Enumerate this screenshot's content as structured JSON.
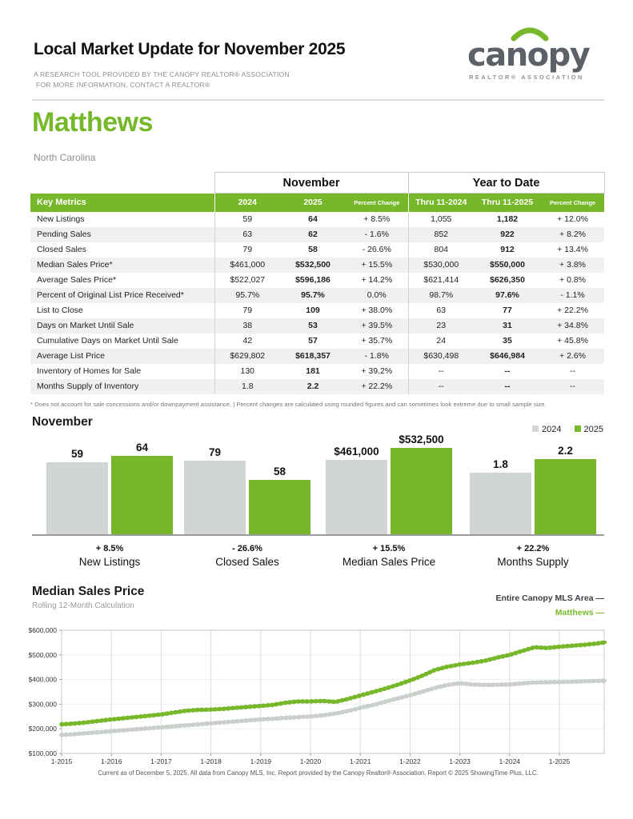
{
  "colors": {
    "green": "#76b82a",
    "bar_gray": "#d2d6d3",
    "line_gray": "#c9cfc9",
    "dark_text": "#3b4045"
  },
  "header": {
    "title": "Local Market Update for November 2025",
    "subtitle_line1": "A RESEARCH TOOL PROVIDED BY THE CANOPY REALTOR® ASSOCIATION",
    "subtitle_line2": "FOR MORE INFORMATION, CONTACT A REALTOR®",
    "logo_brand": "canopy",
    "logo_tagline": "REALTOR® ASSOCIATION"
  },
  "location": {
    "name": "Matthews",
    "state": "North Carolina"
  },
  "table": {
    "section_november": "November",
    "section_ytd": "Year to Date",
    "col_key_metrics": "Key Metrics",
    "col_nov_2024": "2024",
    "col_nov_2025": "2025",
    "col_nov_pct": "Percent Change",
    "col_ytd_2024": "Thru 11-2024",
    "col_ytd_2025": "Thru 11-2025",
    "col_ytd_pct": "Percent Change",
    "rows": [
      {
        "metric": "New Listings",
        "nov_2024": "59",
        "nov_2025": "64",
        "nov_pct": "+ 8.5%",
        "ytd_2024": "1,055",
        "ytd_2025": "1,182",
        "ytd_pct": "+ 12.0%"
      },
      {
        "metric": "Pending Sales",
        "nov_2024": "63",
        "nov_2025": "62",
        "nov_pct": "- 1.6%",
        "ytd_2024": "852",
        "ytd_2025": "922",
        "ytd_pct": "+ 8.2%"
      },
      {
        "metric": "Closed Sales",
        "nov_2024": "79",
        "nov_2025": "58",
        "nov_pct": "- 26.6%",
        "ytd_2024": "804",
        "ytd_2025": "912",
        "ytd_pct": "+ 13.4%"
      },
      {
        "metric": "Median Sales Price*",
        "nov_2024": "$461,000",
        "nov_2025": "$532,500",
        "nov_pct": "+ 15.5%",
        "ytd_2024": "$530,000",
        "ytd_2025": "$550,000",
        "ytd_pct": "+ 3.8%"
      },
      {
        "metric": "Average Sales Price*",
        "nov_2024": "$522,027",
        "nov_2025": "$596,186",
        "nov_pct": "+ 14.2%",
        "ytd_2024": "$621,414",
        "ytd_2025": "$626,350",
        "ytd_pct": "+ 0.8%"
      },
      {
        "metric": "Percent of Original List Price Received*",
        "nov_2024": "95.7%",
        "nov_2025": "95.7%",
        "nov_pct": "0.0%",
        "ytd_2024": "98.7%",
        "ytd_2025": "97.6%",
        "ytd_pct": "- 1.1%"
      },
      {
        "metric": "List to Close",
        "nov_2024": "79",
        "nov_2025": "109",
        "nov_pct": "+ 38.0%",
        "ytd_2024": "63",
        "ytd_2025": "77",
        "ytd_pct": "+ 22.2%"
      },
      {
        "metric": "Days on Market Until Sale",
        "nov_2024": "38",
        "nov_2025": "53",
        "nov_pct": "+ 39.5%",
        "ytd_2024": "23",
        "ytd_2025": "31",
        "ytd_pct": "+ 34.8%"
      },
      {
        "metric": "Cumulative Days on Market Until Sale",
        "nov_2024": "42",
        "nov_2025": "57",
        "nov_pct": "+ 35.7%",
        "ytd_2024": "24",
        "ytd_2025": "35",
        "ytd_pct": "+ 45.8%"
      },
      {
        "metric": "Average List Price",
        "nov_2024": "$629,802",
        "nov_2025": "$618,357",
        "nov_pct": "- 1.8%",
        "ytd_2024": "$630,498",
        "ytd_2025": "$646,984",
        "ytd_pct": "+ 2.6%"
      },
      {
        "metric": "Inventory of Homes for Sale",
        "nov_2024": "130",
        "nov_2025": "181",
        "nov_pct": "+ 39.2%",
        "ytd_2024": "--",
        "ytd_2025": "--",
        "ytd_pct": "--"
      },
      {
        "metric": "Months Supply of Inventory",
        "nov_2024": "1.8",
        "nov_2025": "2.2",
        "nov_pct": "+ 22.2%",
        "ytd_2024": "--",
        "ytd_2025": "--",
        "ytd_pct": "--"
      }
    ],
    "footnote": "* Does not account for sale concessions and/or downpayment assistance.  |  Percent changes are calculated using rounded figures and can sometimes look extreme due to small sample size."
  },
  "chart_data": [
    {
      "type": "bar",
      "title": "November",
      "legend": [
        {
          "label": "2024",
          "color": "#d2d6d3"
        },
        {
          "label": "2025",
          "color": "#76b82a"
        }
      ],
      "legend_position": "top-right",
      "groups": [
        {
          "name": "New Listings",
          "pct_change": "+ 8.5%",
          "v2024": 59,
          "v2025": 64,
          "label2024": "59",
          "label2025": "64"
        },
        {
          "name": "Closed Sales",
          "pct_change": "- 26.6%",
          "v2024": 79,
          "v2025": 58,
          "label2024": "79",
          "label2025": "58"
        },
        {
          "name": "Median Sales Price",
          "pct_change": "+ 15.5%",
          "v2024": 461000,
          "v2025": 532500,
          "label2024": "$461,000",
          "label2025": "$532,500"
        },
        {
          "name": "Months Supply",
          "pct_change": "+ 22.2%",
          "v2024": 1.8,
          "v2025": 2.2,
          "label2024": "1.8",
          "label2025": "2.2"
        }
      ]
    },
    {
      "type": "line",
      "title": "Median Sales Price",
      "subtitle": "Rolling 12-Month Calculation",
      "ylim": [
        100000,
        600000
      ],
      "y_ticks": [
        "$100,000",
        "$200,000",
        "$300,000",
        "$400,000",
        "$500,000",
        "$600,000"
      ],
      "x_ticks": [
        "1-2015",
        "1-2016",
        "1-2017",
        "1-2018",
        "1-2019",
        "1-2020",
        "1-2021",
        "1-2022",
        "1-2023",
        "1-2024",
        "1-2025"
      ],
      "grid": true,
      "legend_position": "top-right",
      "series": [
        {
          "name": "Entire Canopy MLS Area",
          "color": "#c9cfc9",
          "legend_color": "#3b4045",
          "points": [
            [
              2015.0,
              175000
            ],
            [
              2015.25,
              178000
            ],
            [
              2015.5,
              182000
            ],
            [
              2015.75,
              186000
            ],
            [
              2016.0,
              190000
            ],
            [
              2016.25,
              194000
            ],
            [
              2016.5,
              198000
            ],
            [
              2016.75,
              202000
            ],
            [
              2017.0,
              206000
            ],
            [
              2017.25,
              210000
            ],
            [
              2017.5,
              214000
            ],
            [
              2017.75,
              218000
            ],
            [
              2018.0,
              222000
            ],
            [
              2018.25,
              226000
            ],
            [
              2018.5,
              230000
            ],
            [
              2018.75,
              234000
            ],
            [
              2019.0,
              238000
            ],
            [
              2019.25,
              241000
            ],
            [
              2019.5,
              244000
            ],
            [
              2019.75,
              247000
            ],
            [
              2020.0,
              250000
            ],
            [
              2020.25,
              255000
            ],
            [
              2020.5,
              262000
            ],
            [
              2020.75,
              272000
            ],
            [
              2021.0,
              285000
            ],
            [
              2021.25,
              296000
            ],
            [
              2021.5,
              310000
            ],
            [
              2021.75,
              323000
            ],
            [
              2022.0,
              336000
            ],
            [
              2022.25,
              351000
            ],
            [
              2022.5,
              366000
            ],
            [
              2022.75,
              378000
            ],
            [
              2023.0,
              385000
            ],
            [
              2023.25,
              380000
            ],
            [
              2023.5,
              378000
            ],
            [
              2023.75,
              379000
            ],
            [
              2024.0,
              380000
            ],
            [
              2024.25,
              384000
            ],
            [
              2024.5,
              388000
            ],
            [
              2024.75,
              389000
            ],
            [
              2025.0,
              390000
            ],
            [
              2025.25,
              391000
            ],
            [
              2025.5,
              393000
            ],
            [
              2025.75,
              394000
            ],
            [
              2025.92,
              395000
            ]
          ]
        },
        {
          "name": "Matthews",
          "color": "#76b82a",
          "legend_color": "#76b82a",
          "points": [
            [
              2015.0,
              218000
            ],
            [
              2015.25,
              221000
            ],
            [
              2015.5,
              226000
            ],
            [
              2015.75,
              232000
            ],
            [
              2016.0,
              238000
            ],
            [
              2016.25,
              243000
            ],
            [
              2016.5,
              248000
            ],
            [
              2016.75,
              253000
            ],
            [
              2017.0,
              258000
            ],
            [
              2017.25,
              266000
            ],
            [
              2017.5,
              273000
            ],
            [
              2017.75,
              277000
            ],
            [
              2018.0,
              278000
            ],
            [
              2018.25,
              281000
            ],
            [
              2018.5,
              285000
            ],
            [
              2018.75,
              289000
            ],
            [
              2019.0,
              293000
            ],
            [
              2019.25,
              297000
            ],
            [
              2019.5,
              306000
            ],
            [
              2019.75,
              311000
            ],
            [
              2020.0,
              311000
            ],
            [
              2020.25,
              313000
            ],
            [
              2020.5,
              309000
            ],
            [
              2020.75,
              321000
            ],
            [
              2021.0,
              335000
            ],
            [
              2021.25,
              349000
            ],
            [
              2021.5,
              363000
            ],
            [
              2021.75,
              379000
            ],
            [
              2022.0,
              396000
            ],
            [
              2022.25,
              416000
            ],
            [
              2022.5,
              439000
            ],
            [
              2022.75,
              452000
            ],
            [
              2023.0,
              461000
            ],
            [
              2023.25,
              468000
            ],
            [
              2023.5,
              476000
            ],
            [
              2023.75,
              489000
            ],
            [
              2024.0,
              500000
            ],
            [
              2024.25,
              516000
            ],
            [
              2024.5,
              531000
            ],
            [
              2024.75,
              528000
            ],
            [
              2025.0,
              533000
            ],
            [
              2025.25,
              537000
            ],
            [
              2025.5,
              541000
            ],
            [
              2025.75,
              546000
            ],
            [
              2025.92,
              551000
            ]
          ]
        }
      ]
    }
  ],
  "footer": {
    "text": "Current as of December 5, 2025. All data from Canopy MLS, Inc. Report provided by the Canopy Realtor® Association. Report © 2025 ShowingTime Plus, LLC."
  }
}
